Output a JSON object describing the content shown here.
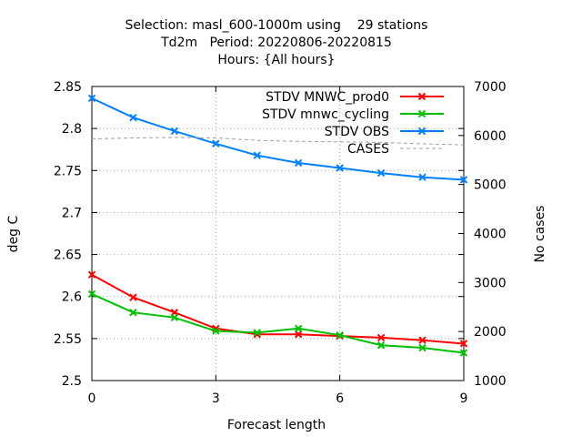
{
  "chart_data": {
    "type": "line",
    "title_lines": [
      "Selection: masl_600-1000m using    29 stations",
      "Td2m   Period: 20220806-20220815",
      "Hours: {All hours}"
    ],
    "xlabel": "Forecast length",
    "ylabel": "deg C",
    "y2label": "No cases",
    "xlim": [
      0,
      9
    ],
    "ylim": [
      2.5,
      2.85
    ],
    "y2lim": [
      1000,
      7000
    ],
    "xticks": [
      0,
      3,
      6,
      9
    ],
    "yticks": [
      "2.5",
      "2.55",
      "2.6",
      "2.65",
      "2.7",
      "2.75",
      "2.8",
      "2.85"
    ],
    "y2ticks": [
      "1000",
      "2000",
      "3000",
      "4000",
      "5000",
      "6000",
      "7000"
    ],
    "grid": true,
    "legend_position": "top-right",
    "x": [
      0,
      1,
      2,
      3,
      4,
      5,
      6,
      7,
      8,
      9
    ],
    "series": [
      {
        "name": "STDV MNWC_prod0",
        "axis": "left",
        "color": "#ff0000",
        "style": "line-points",
        "values": [
          2.626,
          2.599,
          2.581,
          2.562,
          2.555,
          2.555,
          2.553,
          2.551,
          2.548,
          2.544
        ]
      },
      {
        "name": "STDV mnwc_cycling",
        "axis": "left",
        "color": "#00c000",
        "style": "line-points",
        "values": [
          2.603,
          2.581,
          2.575,
          2.559,
          2.557,
          2.562,
          2.554,
          2.542,
          2.539,
          2.533
        ]
      },
      {
        "name": "STDV OBS",
        "axis": "left",
        "color": "#0080ff",
        "style": "line-points",
        "values": [
          2.836,
          2.813,
          2.797,
          2.782,
          2.768,
          2.759,
          2.753,
          2.747,
          2.742,
          2.739
        ]
      },
      {
        "name": "CASES",
        "axis": "right",
        "color": "#a0a0a0",
        "style": "dashed",
        "values": [
          5930,
          5950,
          5960,
          5950,
          5900,
          5880,
          5870,
          5860,
          5830,
          5810
        ]
      }
    ]
  }
}
